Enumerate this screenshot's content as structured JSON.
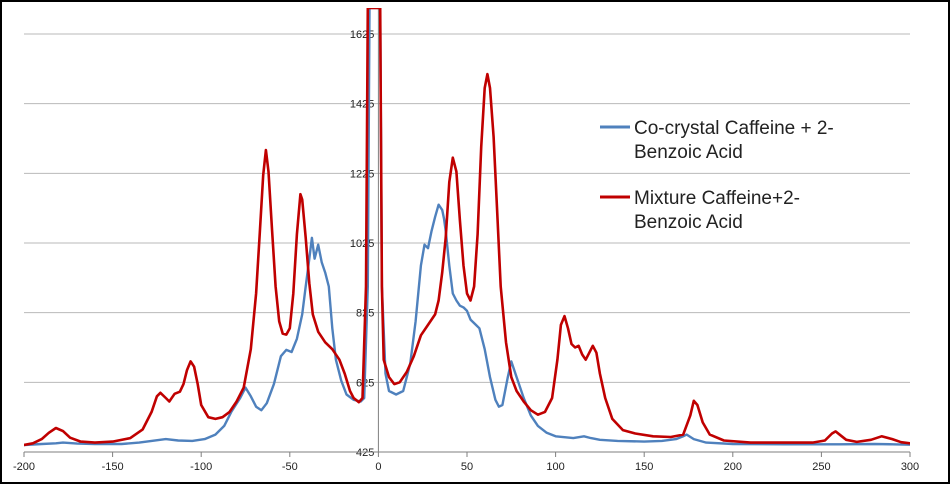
{
  "chart_data": {
    "type": "line",
    "title": "",
    "xlabel": "",
    "ylabel": "",
    "xlim": [
      -200,
      300
    ],
    "ylim": [
      425,
      1700
    ],
    "x_ticks": [
      "-200",
      "-150",
      "-100",
      "-50",
      "0",
      "50",
      "100",
      "150",
      "200",
      "250",
      "300"
    ],
    "y_ticks": [
      "425",
      "625",
      "825",
      "1025",
      "1225",
      "1425",
      "1625"
    ],
    "grid": "horizontal",
    "legend_position": "right",
    "series": [
      {
        "name_line1": "Co-crystal Caffeine + 2-",
        "name_line2": "Benzoic Acid",
        "color": "#4f81bd",
        "points": [
          [
            -200,
            445
          ],
          [
            -190,
            448
          ],
          [
            -182,
            450
          ],
          [
            -178,
            452
          ],
          [
            -170,
            449
          ],
          [
            -160,
            448
          ],
          [
            -145,
            448
          ],
          [
            -135,
            452
          ],
          [
            -128,
            457
          ],
          [
            -120,
            462
          ],
          [
            -113,
            458
          ],
          [
            -105,
            457
          ],
          [
            -98,
            462
          ],
          [
            -92,
            475
          ],
          [
            -87,
            500
          ],
          [
            -83,
            540
          ],
          [
            -78,
            580
          ],
          [
            -75,
            610
          ],
          [
            -72,
            585
          ],
          [
            -69,
            555
          ],
          [
            -66,
            545
          ],
          [
            -63,
            565
          ],
          [
            -59,
            620
          ],
          [
            -55,
            700
          ],
          [
            -52,
            718
          ],
          [
            -49,
            712
          ],
          [
            -46,
            750
          ],
          [
            -43,
            820
          ],
          [
            -41,
            900
          ],
          [
            -39,
            980
          ],
          [
            -37.5,
            1040
          ],
          [
            -36,
            980
          ],
          [
            -34,
            1020
          ],
          [
            -32,
            970
          ],
          [
            -30,
            940
          ],
          [
            -28,
            900
          ],
          [
            -26,
            780
          ],
          [
            -24,
            690
          ],
          [
            -21,
            630
          ],
          [
            -18,
            590
          ],
          [
            -14,
            575
          ],
          [
            -10,
            570
          ],
          [
            -8,
            580
          ],
          [
            -6,
            900
          ],
          [
            -5,
            1700
          ],
          [
            1,
            1700
          ],
          [
            2,
            900
          ],
          [
            4,
            650
          ],
          [
            6,
            600
          ],
          [
            10,
            590
          ],
          [
            14,
            600
          ],
          [
            18,
            680
          ],
          [
            21,
            800
          ],
          [
            24,
            960
          ],
          [
            26,
            1020
          ],
          [
            28,
            1010
          ],
          [
            30,
            1060
          ],
          [
            32,
            1100
          ],
          [
            34,
            1135
          ],
          [
            36,
            1120
          ],
          [
            37,
            1095
          ],
          [
            38,
            1060
          ],
          [
            40,
            960
          ],
          [
            42,
            880
          ],
          [
            44,
            860
          ],
          [
            46,
            845
          ],
          [
            48,
            840
          ],
          [
            50,
            830
          ],
          [
            52,
            805
          ],
          [
            55,
            790
          ],
          [
            57,
            780
          ],
          [
            60,
            720
          ],
          [
            63,
            640
          ],
          [
            66,
            575
          ],
          [
            68,
            555
          ],
          [
            70,
            560
          ],
          [
            73,
            640
          ],
          [
            75,
            685
          ],
          [
            78,
            640
          ],
          [
            82,
            580
          ],
          [
            86,
            530
          ],
          [
            90,
            500
          ],
          [
            95,
            480
          ],
          [
            100,
            470
          ],
          [
            110,
            465
          ],
          [
            116,
            470
          ],
          [
            120,
            465
          ],
          [
            125,
            460
          ],
          [
            135,
            457
          ],
          [
            150,
            455
          ],
          [
            160,
            457
          ],
          [
            168,
            462
          ],
          [
            172,
            470
          ],
          [
            174,
            475
          ],
          [
            178,
            462
          ],
          [
            185,
            452
          ],
          [
            200,
            448
          ],
          [
            230,
            447
          ],
          [
            260,
            447
          ],
          [
            280,
            448
          ],
          [
            290,
            447
          ],
          [
            300,
            446
          ]
        ]
      },
      {
        "name_line1": "Mixture Caffeine+2-",
        "name_line2": "Benzoic Acid",
        "color": "#c00000",
        "points": [
          [
            -200,
            445
          ],
          [
            -195,
            450
          ],
          [
            -190,
            462
          ],
          [
            -186,
            480
          ],
          [
            -182,
            494
          ],
          [
            -178,
            485
          ],
          [
            -174,
            466
          ],
          [
            -168,
            455
          ],
          [
            -160,
            452
          ],
          [
            -150,
            455
          ],
          [
            -140,
            465
          ],
          [
            -133,
            490
          ],
          [
            -128,
            540
          ],
          [
            -125,
            585
          ],
          [
            -123,
            595
          ],
          [
            -120,
            580
          ],
          [
            -118,
            570
          ],
          [
            -115,
            592
          ],
          [
            -112,
            598
          ],
          [
            -110,
            620
          ],
          [
            -108,
            660
          ],
          [
            -106,
            685
          ],
          [
            -104,
            670
          ],
          [
            -102,
            620
          ],
          [
            -100,
            560
          ],
          [
            -96,
            525
          ],
          [
            -92,
            520
          ],
          [
            -88,
            525
          ],
          [
            -84,
            540
          ],
          [
            -80,
            570
          ],
          [
            -76,
            610
          ],
          [
            -72,
            720
          ],
          [
            -69,
            880
          ],
          [
            -67,
            1050
          ],
          [
            -65,
            1220
          ],
          [
            -63.5,
            1292
          ],
          [
            -62,
            1230
          ],
          [
            -60,
            1060
          ],
          [
            -58,
            900
          ],
          [
            -56,
            800
          ],
          [
            -54,
            765
          ],
          [
            -52,
            762
          ],
          [
            -50,
            780
          ],
          [
            -48,
            880
          ],
          [
            -46,
            1050
          ],
          [
            -44,
            1165
          ],
          [
            -43,
            1150
          ],
          [
            -41,
            1040
          ],
          [
            -39,
            910
          ],
          [
            -37,
            820
          ],
          [
            -34,
            770
          ],
          [
            -30,
            740
          ],
          [
            -26,
            720
          ],
          [
            -22,
            690
          ],
          [
            -19,
            650
          ],
          [
            -16,
            600
          ],
          [
            -14,
            580
          ],
          [
            -11,
            568
          ],
          [
            -9,
            580
          ],
          [
            -7,
            900
          ],
          [
            -6,
            1700
          ],
          [
            1,
            1700
          ],
          [
            2,
            900
          ],
          [
            3,
            690
          ],
          [
            6,
            640
          ],
          [
            9,
            620
          ],
          [
            12,
            625
          ],
          [
            16,
            655
          ],
          [
            20,
            700
          ],
          [
            24,
            760
          ],
          [
            28,
            790
          ],
          [
            32,
            820
          ],
          [
            34,
            860
          ],
          [
            36,
            940
          ],
          [
            38,
            1040
          ],
          [
            40,
            1200
          ],
          [
            42,
            1270
          ],
          [
            44,
            1230
          ],
          [
            46,
            1090
          ],
          [
            48,
            960
          ],
          [
            50,
            880
          ],
          [
            52,
            860
          ],
          [
            54,
            900
          ],
          [
            56,
            1050
          ],
          [
            58,
            1300
          ],
          [
            60,
            1470
          ],
          [
            61.5,
            1510
          ],
          [
            63,
            1470
          ],
          [
            65,
            1330
          ],
          [
            67,
            1120
          ],
          [
            69,
            900
          ],
          [
            72,
            740
          ],
          [
            75,
            640
          ],
          [
            78,
            600
          ],
          [
            82,
            570
          ],
          [
            86,
            545
          ],
          [
            90,
            532
          ],
          [
            94,
            540
          ],
          [
            98,
            580
          ],
          [
            101,
            690
          ],
          [
            103,
            790
          ],
          [
            105,
            815
          ],
          [
            107,
            780
          ],
          [
            109,
            735
          ],
          [
            111,
            725
          ],
          [
            113,
            730
          ],
          [
            115,
            705
          ],
          [
            117,
            690
          ],
          [
            119,
            710
          ],
          [
            121,
            730
          ],
          [
            123,
            710
          ],
          [
            125,
            650
          ],
          [
            128,
            580
          ],
          [
            132,
            520
          ],
          [
            138,
            488
          ],
          [
            145,
            478
          ],
          [
            155,
            470
          ],
          [
            165,
            468
          ],
          [
            172,
            475
          ],
          [
            176,
            530
          ],
          [
            178,
            572
          ],
          [
            180,
            560
          ],
          [
            183,
            510
          ],
          [
            187,
            475
          ],
          [
            195,
            458
          ],
          [
            210,
            452
          ],
          [
            230,
            452
          ],
          [
            245,
            452
          ],
          [
            252,
            458
          ],
          [
            256,
            478
          ],
          [
            258,
            484
          ],
          [
            260,
            476
          ],
          [
            264,
            460
          ],
          [
            270,
            454
          ],
          [
            278,
            460
          ],
          [
            284,
            470
          ],
          [
            290,
            462
          ],
          [
            295,
            453
          ],
          [
            300,
            450
          ]
        ]
      }
    ]
  }
}
